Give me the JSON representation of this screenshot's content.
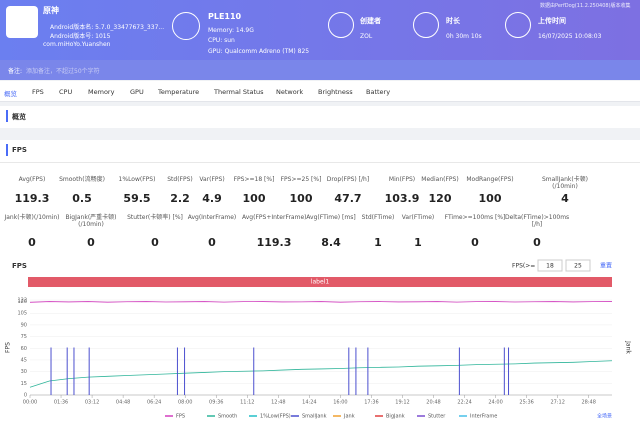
{
  "header": {
    "app": {
      "name": "原神",
      "version_name": "Android版本名: 5.7.0_33477673_337...",
      "version_code": "Android版本号: 1015",
      "package": "com.miHoYo.Yuanshen"
    },
    "device": {
      "name": "PLE110",
      "memory": "Memory: 14.9G",
      "cpu": "CPU: sun",
      "gpu": "GPU: Qualcomm Adreno (TM) 825"
    },
    "creator": {
      "label": "创建者",
      "value": "ZOL"
    },
    "duration": {
      "label": "时长",
      "value": "0h 30m 10s"
    },
    "upload": {
      "label": "上传时间",
      "value": "16/07/2025 10:08:03"
    },
    "source_note": "数据由PerfDog(11.2.250408)版本收集",
    "remark_label": "备注:",
    "remark_placeholder": "添加备注，不超过50个字符"
  },
  "tabs": [
    "概览",
    "FPS",
    "CPU",
    "Memory",
    "GPU",
    "Temperature",
    "Thermal Status",
    "Network",
    "Brightness",
    "Battery"
  ],
  "sections": [
    "概览",
    "FPS"
  ],
  "stats": [
    [
      {
        "label": "Avg(FPS)",
        "value": 119.3
      },
      {
        "label": "Smooth(流畅度)",
        "value": 0.5
      },
      {
        "label": "1%Low(FPS)",
        "value": 59.5
      },
      {
        "label": "Std(FPS)",
        "value": 2.2
      },
      {
        "label": "Var(FPS)",
        "value": 4.9
      },
      {
        "label": "FPS>=18 [%]",
        "value": 100
      },
      {
        "label": "FPS>=25 [%]",
        "value": 100
      },
      {
        "label": "Drop(FPS) [/h]",
        "value": 47.7
      },
      {
        "label": "Min(FPS)",
        "value": 103.9
      },
      {
        "label": "Median(FPS)",
        "value": 120
      },
      {
        "label": "ModRange(FPS)",
        "value": 100
      },
      {
        "label": "SmallJank(卡顿)(/10min)",
        "value": 4
      }
    ],
    [
      {
        "label": "Jank(卡顿)(/10min)",
        "value": 0
      },
      {
        "label": "BigJank(严重卡顿)(/10min)",
        "value": 0
      },
      {
        "label": "Stutter(卡顿率) [%]",
        "value": 0
      },
      {
        "label": "Avg(InterFrame)",
        "value": 0
      },
      {
        "label": "Avg(FPS+InterFrame)",
        "value": 119.3
      },
      {
        "label": "Avg(FTime) [ms]",
        "value": 8.4
      },
      {
        "label": "Std(FTime)",
        "value": 1
      },
      {
        "label": "Var(FTime)",
        "value": 1
      },
      {
        "label": "FTime>=100ms [%]",
        "value": 0
      },
      {
        "label": "Delta(FTime)>100ms [/h]",
        "value": 0
      }
    ]
  ],
  "chart": {
    "type": "line",
    "title": "FPS",
    "threshold_label": "FPS(>=",
    "thresholds": [
      18,
      25
    ],
    "reset": "重置",
    "band_label": "label1",
    "ylabel": "FPS",
    "y2label": "Jank",
    "scene": "全场景",
    "xlim": [
      0,
      1800
    ],
    "ylim": [
      0,
      122
    ],
    "y2lim": [
      0,
      2
    ],
    "xticks": [
      {
        "value": 0,
        "label": "00:00"
      },
      {
        "value": 96,
        "label": "01:36"
      },
      {
        "value": 192,
        "label": "03:12"
      },
      {
        "value": 288,
        "label": "04:48"
      },
      {
        "value": 384,
        "label": "06:24"
      },
      {
        "value": 480,
        "label": "08:00"
      },
      {
        "value": 576,
        "label": "09:36"
      },
      {
        "value": 672,
        "label": "11:12"
      },
      {
        "value": 768,
        "label": "12:48"
      },
      {
        "value": 864,
        "label": "14:24"
      },
      {
        "value": 960,
        "label": "16:00"
      },
      {
        "value": 1056,
        "label": "17:36"
      },
      {
        "value": 1152,
        "label": "19:12"
      },
      {
        "value": 1248,
        "label": "20:48"
      },
      {
        "value": 1344,
        "label": "22:24"
      },
      {
        "value": 1440,
        "label": "24:00"
      },
      {
        "value": 1536,
        "label": "25:36"
      },
      {
        "value": 1632,
        "label": "27:12"
      },
      {
        "value": 1728,
        "label": "28:48"
      }
    ],
    "yticks": [
      0,
      15,
      30,
      45,
      60,
      75,
      90,
      105,
      120,
      122
    ],
    "series": [
      {
        "name": "FPS",
        "color": "#d23fbf",
        "x": [
          0,
          60,
          120,
          180,
          240,
          300,
          360,
          420,
          480,
          540,
          600,
          660,
          720,
          780,
          840,
          900,
          960,
          1020,
          1080,
          1140,
          1200,
          1260,
          1320,
          1380,
          1440,
          1500,
          1560,
          1620,
          1680,
          1740,
          1800
        ],
        "values": [
          119,
          120,
          119.5,
          120,
          119.2,
          119.8,
          120,
          119.4,
          119.7,
          120,
          119.3,
          119.9,
          120,
          119.5,
          119.6,
          120,
          119.2,
          119.8,
          120,
          119.5,
          119.7,
          120,
          119.3,
          119.9,
          120,
          119.4,
          119.8,
          120,
          119.5,
          119.9,
          120
        ]
      },
      {
        "name": "Smooth",
        "color": "#2fb59a",
        "x": [
          0,
          60,
          120,
          180,
          240,
          300,
          360,
          420,
          480,
          540,
          600,
          660,
          720,
          780,
          840,
          900,
          960,
          1020,
          1080,
          1140,
          1200,
          1260,
          1320,
          1380,
          1440,
          1500,
          1560,
          1620,
          1680,
          1740,
          1800
        ],
        "values": [
          10,
          18,
          21,
          23,
          24,
          25,
          26,
          27,
          28,
          29,
          30,
          30.5,
          31,
          32,
          33,
          33.5,
          34,
          35,
          35.5,
          36,
          37,
          37.5,
          38,
          39,
          39.5,
          40,
          41,
          41.5,
          42,
          43,
          44
        ]
      },
      {
        "name": "1%Low(FPS)",
        "color": "#22bfc7",
        "x": [],
        "values": []
      },
      {
        "name": "SmallJank",
        "color": "#4b4fcf",
        "axis": "y2",
        "x": [
          65,
          115,
          136,
          183,
          456,
          478,
          692,
          986,
          1008,
          1045,
          1328,
          1467,
          1480
        ],
        "values": [
          1,
          1,
          1,
          1,
          1,
          1,
          1,
          1,
          1,
          1,
          1,
          1,
          1
        ]
      },
      {
        "name": "Jank",
        "color": "#f0a030",
        "x": [],
        "values": []
      },
      {
        "name": "BigJank",
        "color": "#e04040",
        "x": [],
        "values": []
      },
      {
        "name": "Stutter",
        "color": "#7a4fd0",
        "x": [],
        "values": []
      },
      {
        "name": "InterFrame",
        "color": "#48c0e8",
        "x": [],
        "values": []
      }
    ]
  }
}
